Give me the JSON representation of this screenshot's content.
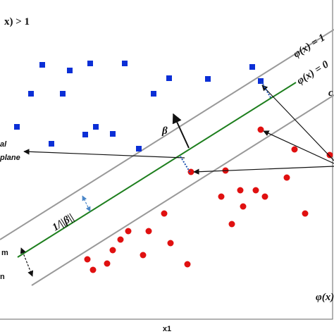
{
  "labels": {
    "top_left": "x) > 1",
    "upper_margin": "φ(x) = 1",
    "hyperplane_eq": "φ(x) = 0",
    "lower_cropped": "c",
    "beta": "β",
    "margin_width": "1/||β||",
    "optimal_line1": "al",
    "optimal_line2": "plane",
    "margin_line1": "m",
    "margin_line2": "n",
    "bottom_right": "φ(x)",
    "x_axis": "x1"
  }
}
